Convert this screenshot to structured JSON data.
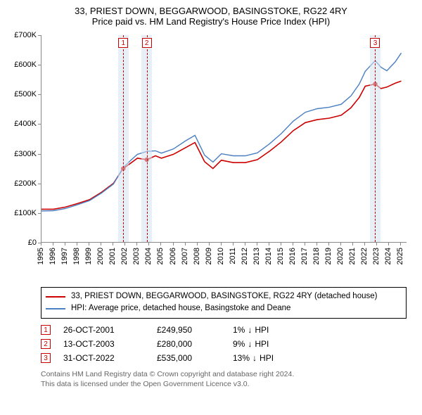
{
  "title": {
    "line1": "33, PRIEST DOWN, BEGGARWOOD, BASINGSTOKE, RG22 4RY",
    "line2": "Price paid vs. HM Land Registry's House Price Index (HPI)"
  },
  "chart": {
    "type": "line",
    "x_domain": [
      1995,
      2025.5
    ],
    "y_domain": [
      0,
      700
    ],
    "y_ticks": [
      0,
      100,
      200,
      300,
      400,
      500,
      600,
      700
    ],
    "y_tick_labels": [
      "£0",
      "£100K",
      "£200K",
      "£300K",
      "£400K",
      "£500K",
      "£600K",
      "£700K"
    ],
    "x_ticks": [
      1995,
      1996,
      1997,
      1998,
      1999,
      2000,
      2001,
      2002,
      2003,
      2004,
      2005,
      2006,
      2007,
      2008,
      2009,
      2010,
      2011,
      2012,
      2013,
      2014,
      2015,
      2016,
      2017,
      2018,
      2019,
      2020,
      2021,
      2022,
      2023,
      2024,
      2025
    ],
    "grid_color": "#cccccc",
    "background_color": "#ffffff",
    "series": [
      {
        "name": "property",
        "color": "#cc0000",
        "width": 1.6,
        "points": [
          [
            1995,
            113
          ],
          [
            1996,
            113
          ],
          [
            1997,
            120
          ],
          [
            1998,
            132
          ],
          [
            1999,
            145
          ],
          [
            2000,
            170
          ],
          [
            2001,
            200
          ],
          [
            2001.8,
            249.95
          ],
          [
            2002.5,
            270
          ],
          [
            2003,
            285
          ],
          [
            2003.8,
            280
          ],
          [
            2004.5,
            293
          ],
          [
            2005,
            285
          ],
          [
            2006,
            298
          ],
          [
            2007,
            320
          ],
          [
            2007.8,
            338
          ],
          [
            2008.6,
            273
          ],
          [
            2009.3,
            250
          ],
          [
            2010,
            278
          ],
          [
            2011,
            270
          ],
          [
            2012,
            270
          ],
          [
            2013,
            280
          ],
          [
            2014,
            308
          ],
          [
            2015,
            340
          ],
          [
            2016,
            378
          ],
          [
            2017,
            405
          ],
          [
            2018,
            415
          ],
          [
            2019,
            420
          ],
          [
            2020,
            430
          ],
          [
            2020.8,
            455
          ],
          [
            2021.5,
            490
          ],
          [
            2022,
            528
          ],
          [
            2022.83,
            535
          ],
          [
            2023.3,
            520
          ],
          [
            2023.8,
            525
          ],
          [
            2024.5,
            538
          ],
          [
            2025,
            545
          ]
        ]
      },
      {
        "name": "hpi",
        "color": "#4a7fc1",
        "width": 1.4,
        "points": [
          [
            1995,
            107
          ],
          [
            1996,
            108
          ],
          [
            1997,
            115
          ],
          [
            1998,
            128
          ],
          [
            1999,
            142
          ],
          [
            2000,
            167
          ],
          [
            2001,
            198
          ],
          [
            2001.8,
            253
          ],
          [
            2002.5,
            280
          ],
          [
            2003,
            298
          ],
          [
            2003.8,
            308
          ],
          [
            2004.5,
            310
          ],
          [
            2005,
            302
          ],
          [
            2006,
            316
          ],
          [
            2007,
            343
          ],
          [
            2007.8,
            362
          ],
          [
            2008.6,
            295
          ],
          [
            2009.3,
            272
          ],
          [
            2010,
            300
          ],
          [
            2011,
            293
          ],
          [
            2012,
            293
          ],
          [
            2013,
            303
          ],
          [
            2014,
            333
          ],
          [
            2015,
            368
          ],
          [
            2016,
            410
          ],
          [
            2017,
            440
          ],
          [
            2018,
            452
          ],
          [
            2019,
            457
          ],
          [
            2020,
            467
          ],
          [
            2020.8,
            495
          ],
          [
            2021.5,
            535
          ],
          [
            2022,
            578
          ],
          [
            2022.83,
            614
          ],
          [
            2023.3,
            592
          ],
          [
            2023.8,
            580
          ],
          [
            2024.5,
            610
          ],
          [
            2025,
            640
          ]
        ]
      }
    ],
    "sale_markers": [
      {
        "n": 1,
        "x": 2001.82,
        "band_half_width": 0.45,
        "y": 249.95
      },
      {
        "n": 2,
        "x": 2003.78,
        "band_half_width": 0.45,
        "y": 280
      },
      {
        "n": 3,
        "x": 2022.83,
        "band_half_width": 0.45,
        "y": 535
      }
    ]
  },
  "legend": {
    "items": [
      {
        "label": "33, PRIEST DOWN, BEGGARWOOD, BASINGSTOKE, RG22 4RY (detached house)",
        "color": "#cc0000"
      },
      {
        "label": "HPI: Average price, detached house, Basingstoke and Deane",
        "color": "#4a7fc1"
      }
    ]
  },
  "sales": [
    {
      "n": "1",
      "date": "26-OCT-2001",
      "price": "£249,950",
      "diff": "1%",
      "arrow": "↓",
      "diff_label": "HPI"
    },
    {
      "n": "2",
      "date": "13-OCT-2003",
      "price": "£280,000",
      "diff": "9%",
      "arrow": "↓",
      "diff_label": "HPI"
    },
    {
      "n": "3",
      "date": "31-OCT-2022",
      "price": "£535,000",
      "diff": "13%",
      "arrow": "↓",
      "diff_label": "HPI"
    }
  ],
  "footer": {
    "line1": "Contains HM Land Registry data © Crown copyright and database right 2024.",
    "line2": "This data is licensed under the Open Government Licence v3.0."
  }
}
